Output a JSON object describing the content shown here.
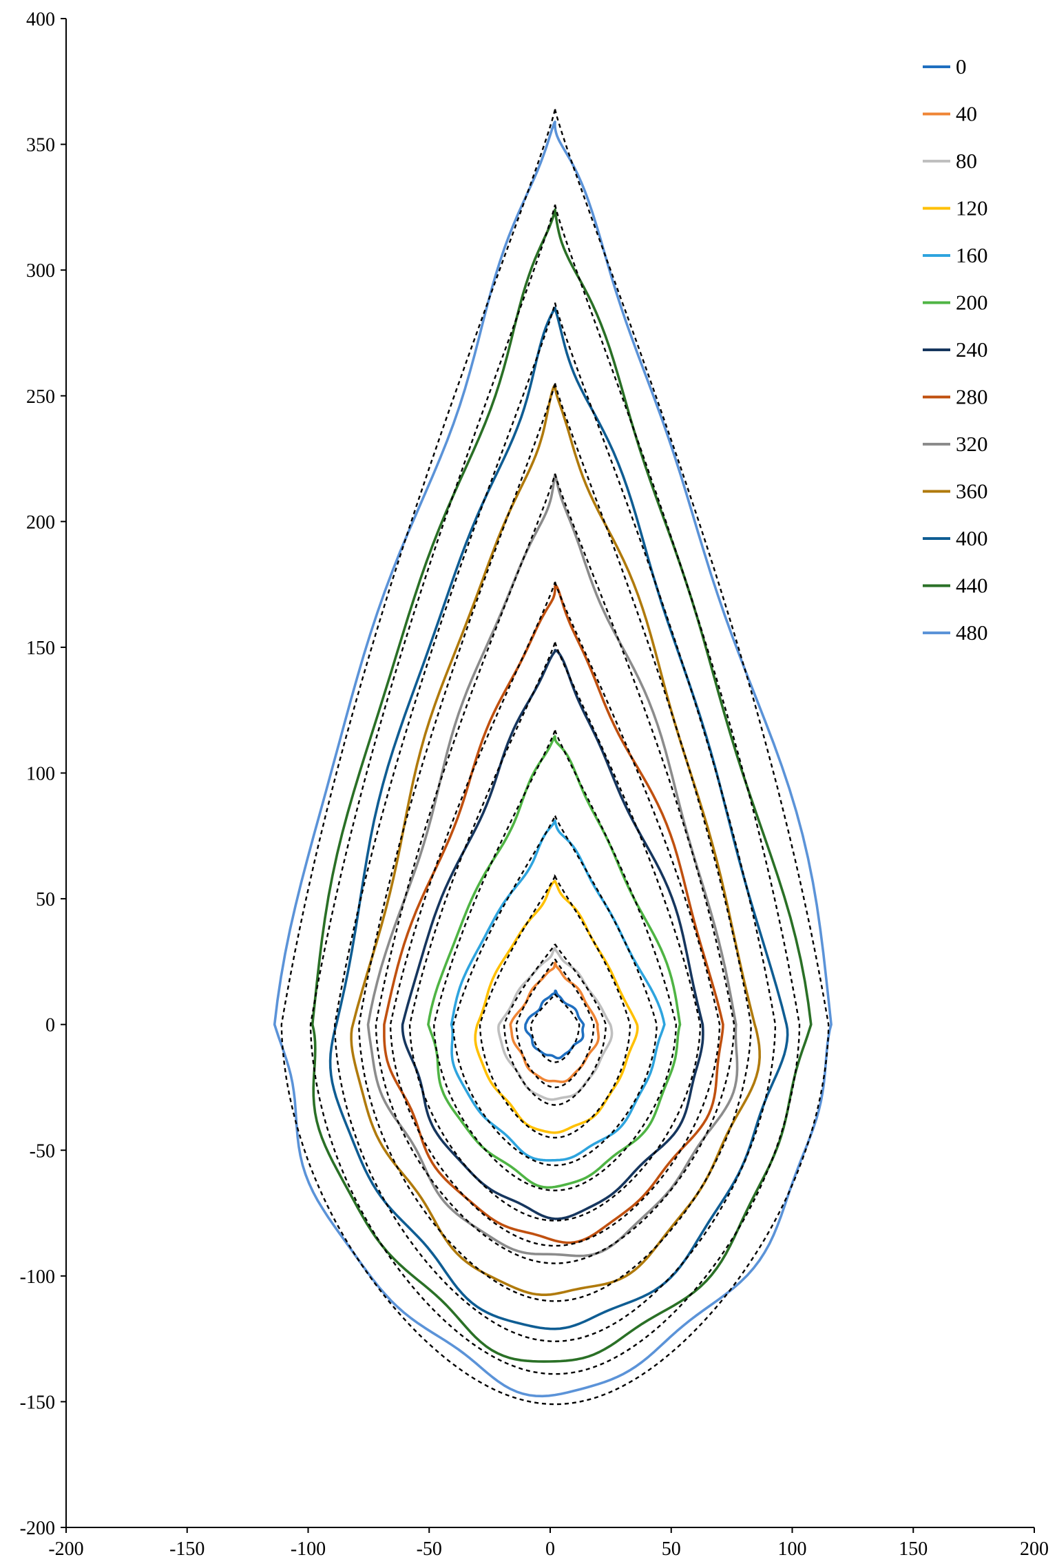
{
  "chart_data": {
    "type": "line",
    "title": "",
    "xlabel": "",
    "ylabel": "",
    "xlim": [
      -200,
      200
    ],
    "ylim": [
      -200,
      400
    ],
    "x_ticks": [
      "-200",
      "-150",
      "-100",
      "-50",
      "0",
      "50",
      "100",
      "150",
      "200"
    ],
    "y_ticks": [
      "400",
      "350",
      "300",
      "250",
      "200",
      "150",
      "100",
      "50",
      "0",
      "-50",
      "-100",
      "-150",
      "-200"
    ],
    "grid": false,
    "legend_position": "top-right",
    "series": [
      {
        "name": "0",
        "color": "#1f6fc0",
        "top": 13,
        "bottom": -13,
        "halfwidth": 12
      },
      {
        "name": "40",
        "color": "#ef8535",
        "top": 24,
        "bottom": -23,
        "halfwidth": 18
      },
      {
        "name": "80",
        "color": "#bfbfbf",
        "top": 30,
        "bottom": -30,
        "halfwidth": 23
      },
      {
        "name": "120",
        "color": "#ffc000",
        "top": 57,
        "bottom": -43,
        "halfwidth": 33
      },
      {
        "name": "160",
        "color": "#2ea4de",
        "top": 81,
        "bottom": -54,
        "halfwidth": 44
      },
      {
        "name": "200",
        "color": "#4fb444",
        "top": 115,
        "bottom": -64,
        "halfwidth": 52
      },
      {
        "name": "240",
        "color": "#16365e",
        "top": 150,
        "bottom": -76,
        "halfwidth": 62
      },
      {
        "name": "280",
        "color": "#c0500f",
        "top": 174,
        "bottom": -86,
        "halfwidth": 70
      },
      {
        "name": "320",
        "color": "#8c8c8c",
        "top": 217,
        "bottom": -93,
        "halfwidth": 76
      },
      {
        "name": "360",
        "color": "#b07a0c",
        "top": 253,
        "bottom": -108,
        "halfwidth": 83
      },
      {
        "name": "400",
        "color": "#0f5d93",
        "top": 285,
        "bottom": -121,
        "halfwidth": 93
      },
      {
        "name": "440",
        "color": "#2a7026",
        "top": 324,
        "bottom": -134,
        "halfwidth": 103
      },
      {
        "name": "480",
        "color": "#5b93d8",
        "top": 360,
        "bottom": -146,
        "halfwidth": 115
      }
    ],
    "model_contours": {
      "style": "dashed",
      "color": "#000000",
      "count": 13
    }
  }
}
